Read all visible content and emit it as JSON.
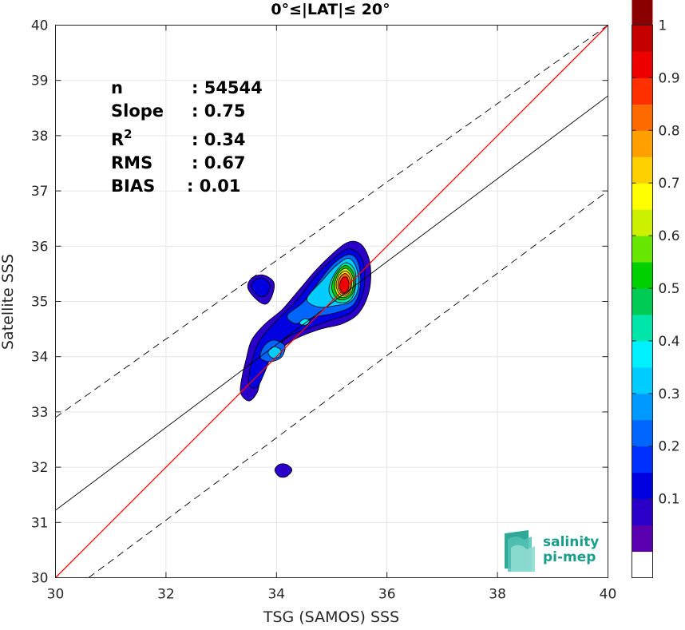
{
  "chart_data": {
    "type": "heatmap",
    "title": "0°≤|LAT|≤ 20°",
    "xlabel": "TSG (SAMOS) SSS",
    "ylabel": "Satellite SSS",
    "xlim": [
      30,
      40
    ],
    "ylim": [
      30,
      40
    ],
    "xticks": [
      "30",
      "32",
      "34",
      "36",
      "38",
      "40"
    ],
    "yticks": [
      "30",
      "31",
      "32",
      "33",
      "34",
      "35",
      "36",
      "37",
      "38",
      "39",
      "40"
    ],
    "grid": true,
    "colorbar": {
      "range": [
        0,
        1
      ],
      "levels": 20,
      "ticks": [
        "0.1",
        "0.2",
        "0.3",
        "0.4",
        "0.5",
        "0.6",
        "0.7",
        "0.8",
        "0.9",
        "1"
      ],
      "colors": [
        "#ffffff",
        "#5a00b0",
        "#2a00c8",
        "#0000e0",
        "#0030ff",
        "#0066ff",
        "#0099ff",
        "#00ccff",
        "#00f0ff",
        "#00e6aa",
        "#00cc55",
        "#00d000",
        "#66e600",
        "#ccf000",
        "#ffff00",
        "#ffd000",
        "#ff9f00",
        "#ff6a00",
        "#ff3000",
        "#ee0000",
        "#c40000",
        "#8a0000"
      ]
    },
    "stats": [
      {
        "label": "n",
        "value": ": 54544"
      },
      {
        "label": "Slope",
        "value": ": 0.75"
      },
      {
        "label": "R",
        "sup": "2",
        "value": ": 0.34"
      },
      {
        "label": "RMS",
        "value": ": 0.67"
      },
      {
        "label": "BIAS",
        "value": ": 0.01"
      }
    ],
    "lines": {
      "identity": {
        "points": [
          [
            30,
            30
          ],
          [
            40,
            40
          ]
        ],
        "color": "#ff0000"
      },
      "fit": {
        "points": [
          [
            30,
            31.22
          ],
          [
            40,
            38.72
          ]
        ],
        "color": "#000000"
      },
      "upper": {
        "points": [
          [
            30,
            32.9
          ],
          [
            40,
            40
          ]
        ],
        "color": "#000000",
        "dash": true
      },
      "lower": {
        "points": [
          [
            30.6,
            30
          ],
          [
            40,
            37.0
          ]
        ],
        "color": "#000000",
        "dash": true
      }
    },
    "contours": [
      {
        "level": 0.05,
        "points": [
          [
            33.35,
            33.35
          ],
          [
            33.38,
            33.65
          ],
          [
            33.45,
            33.95
          ],
          [
            33.55,
            34.3
          ],
          [
            33.8,
            34.6
          ],
          [
            34.1,
            34.85
          ],
          [
            34.4,
            35.2
          ],
          [
            34.7,
            35.55
          ],
          [
            35.0,
            35.85
          ],
          [
            35.25,
            36.05
          ],
          [
            35.45,
            36.08
          ],
          [
            35.6,
            35.95
          ],
          [
            35.7,
            35.65
          ],
          [
            35.68,
            35.2
          ],
          [
            35.5,
            34.8
          ],
          [
            35.2,
            34.6
          ],
          [
            34.8,
            34.5
          ],
          [
            34.4,
            34.35
          ],
          [
            34.15,
            34.2
          ],
          [
            33.9,
            34.0
          ],
          [
            33.72,
            33.6
          ],
          [
            33.65,
            33.35
          ],
          [
            33.5,
            33.2
          ]
        ]
      },
      {
        "level": 0.05,
        "points": [
          [
            33.48,
            35.25
          ],
          [
            33.55,
            35.42
          ],
          [
            33.75,
            35.48
          ],
          [
            33.95,
            35.35
          ],
          [
            33.92,
            35.1
          ],
          [
            33.8,
            34.95
          ],
          [
            33.62,
            35.05
          ]
        ]
      },
      {
        "level": 0.05,
        "points": [
          [
            33.97,
            31.95
          ],
          [
            34.05,
            32.05
          ],
          [
            34.18,
            32.05
          ],
          [
            34.28,
            31.95
          ],
          [
            34.18,
            31.83
          ],
          [
            34.05,
            31.83
          ]
        ]
      },
      {
        "level": 0.1,
        "points": [
          [
            33.55,
            35.25
          ],
          [
            33.6,
            35.38
          ],
          [
            33.75,
            35.42
          ],
          [
            33.88,
            35.3
          ],
          [
            33.82,
            35.12
          ],
          [
            33.68,
            35.1
          ]
        ]
      },
      {
        "level": 0.1,
        "points": [
          [
            33.5,
            33.5
          ],
          [
            33.55,
            33.9
          ],
          [
            33.7,
            34.3
          ],
          [
            34.0,
            34.65
          ],
          [
            34.35,
            35.0
          ],
          [
            34.7,
            35.45
          ],
          [
            35.0,
            35.75
          ],
          [
            35.3,
            35.95
          ],
          [
            35.52,
            35.82
          ],
          [
            35.6,
            35.5
          ],
          [
            35.55,
            35.1
          ],
          [
            35.35,
            34.8
          ],
          [
            34.95,
            34.65
          ],
          [
            34.55,
            34.5
          ],
          [
            34.2,
            34.35
          ],
          [
            33.95,
            34.1
          ],
          [
            33.78,
            33.7
          ],
          [
            33.65,
            33.45
          ]
        ]
      },
      {
        "level": 0.2,
        "points": [
          [
            33.7,
            34.0
          ],
          [
            33.78,
            34.2
          ],
          [
            33.95,
            34.3
          ],
          [
            34.15,
            34.2
          ],
          [
            34.1,
            34.0
          ],
          [
            33.95,
            33.92
          ],
          [
            33.8,
            33.92
          ]
        ]
      },
      {
        "level": 0.2,
        "points": [
          [
            34.2,
            34.75
          ],
          [
            34.5,
            35.0
          ],
          [
            34.8,
            35.4
          ],
          [
            35.05,
            35.7
          ],
          [
            35.32,
            35.85
          ],
          [
            35.48,
            35.7
          ],
          [
            35.52,
            35.3
          ],
          [
            35.4,
            34.95
          ],
          [
            35.1,
            34.8
          ],
          [
            34.7,
            34.72
          ],
          [
            34.35,
            34.6
          ]
        ]
      },
      {
        "level": 0.3,
        "points": [
          [
            33.85,
            34.08
          ],
          [
            33.95,
            34.18
          ],
          [
            34.08,
            34.12
          ],
          [
            34.05,
            34.0
          ],
          [
            33.92,
            33.98
          ]
        ]
      },
      {
        "level": 0.3,
        "points": [
          [
            34.55,
            35.05
          ],
          [
            34.85,
            35.4
          ],
          [
            35.05,
            35.62
          ],
          [
            35.3,
            35.78
          ],
          [
            35.45,
            35.6
          ],
          [
            35.48,
            35.25
          ],
          [
            35.35,
            35.0
          ],
          [
            35.05,
            34.92
          ],
          [
            34.75,
            34.9
          ]
        ]
      },
      {
        "level": 0.35,
        "points": [
          [
            34.42,
            34.62
          ],
          [
            34.5,
            34.68
          ],
          [
            34.6,
            34.66
          ],
          [
            34.55,
            34.58
          ],
          [
            34.45,
            34.58
          ]
        ]
      },
      {
        "level": 0.4,
        "points": [
          [
            34.95,
            35.2
          ],
          [
            35.05,
            35.5
          ],
          [
            35.25,
            35.7
          ],
          [
            35.42,
            35.55
          ],
          [
            35.42,
            35.2
          ],
          [
            35.3,
            35.0
          ],
          [
            35.08,
            35.0
          ]
        ]
      },
      {
        "level": 0.5,
        "points": [
          [
            35.0,
            35.25
          ],
          [
            35.08,
            35.5
          ],
          [
            35.25,
            35.65
          ],
          [
            35.4,
            35.5
          ],
          [
            35.4,
            35.2
          ],
          [
            35.28,
            35.05
          ],
          [
            35.1,
            35.05
          ]
        ]
      },
      {
        "level": 0.6,
        "points": [
          [
            35.05,
            35.28
          ],
          [
            35.12,
            35.5
          ],
          [
            35.26,
            35.6
          ],
          [
            35.38,
            35.45
          ],
          [
            35.37,
            35.2
          ],
          [
            35.26,
            35.08
          ],
          [
            35.12,
            35.1
          ]
        ]
      },
      {
        "level": 0.7,
        "points": [
          [
            35.08,
            35.3
          ],
          [
            35.14,
            35.48
          ],
          [
            35.26,
            35.55
          ],
          [
            35.36,
            35.42
          ],
          [
            35.34,
            35.2
          ],
          [
            35.25,
            35.1
          ],
          [
            35.14,
            35.14
          ]
        ]
      },
      {
        "level": 0.8,
        "points": [
          [
            35.11,
            35.3
          ],
          [
            35.16,
            35.45
          ],
          [
            35.26,
            35.5
          ],
          [
            35.34,
            35.38
          ],
          [
            35.32,
            35.2
          ],
          [
            35.24,
            35.13
          ],
          [
            35.16,
            35.17
          ]
        ]
      },
      {
        "level": 0.9,
        "points": [
          [
            35.14,
            35.28
          ],
          [
            35.19,
            35.42
          ],
          [
            35.27,
            35.44
          ],
          [
            35.31,
            35.32
          ],
          [
            35.28,
            35.18
          ],
          [
            35.2,
            35.16
          ]
        ]
      }
    ]
  }
}
